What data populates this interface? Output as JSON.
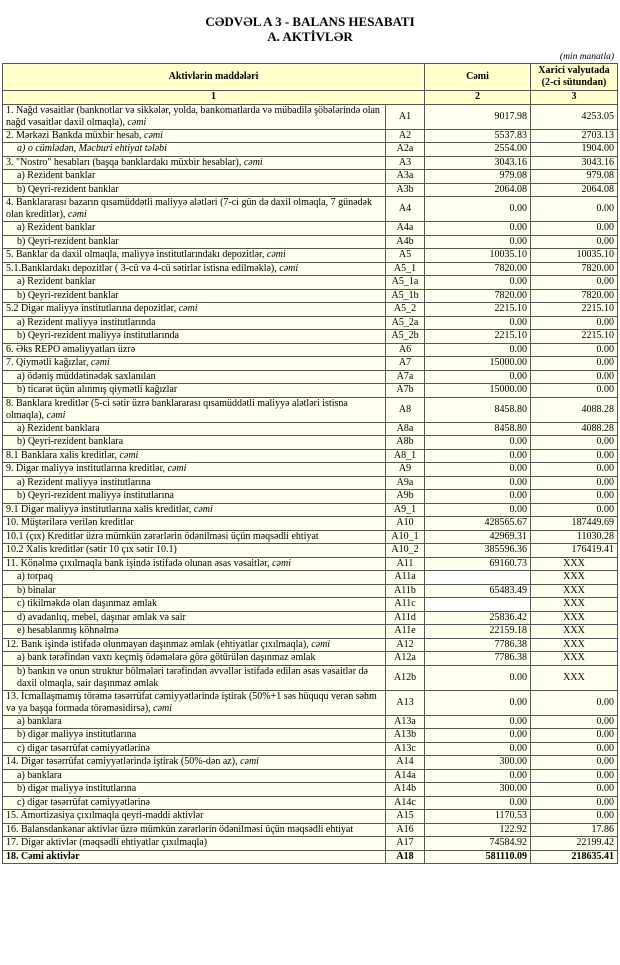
{
  "header": {
    "title": "CƏDVƏL A 3 - BALANS HESABATI",
    "subtitle": "A. AKTİVLƏR",
    "unit": "(min manatla)"
  },
  "table": {
    "columns": [
      "Aktivlərin   maddələri",
      "Cəmi",
      "Xarici valyutada (2-ci sütundan)"
    ],
    "column_numbers": [
      "1",
      "2",
      "3"
    ],
    "rows": [
      {
        "label": "1. Nağd vəsaitlər (banknotlar və sikkələr, yolda, bankomatlarda və mübadilə şöbələrində olan nağd vəsaitlər daxil olmaqla), ",
        "em": "cəmi",
        "code": "A1",
        "total": "9017.98",
        "fx": "4253.05"
      },
      {
        "label": "2. Mərkəzi Bankda müxbir hesab, ",
        "em": "cəmi",
        "code": "A2",
        "total": "5537.83",
        "fx": "2703.13"
      },
      {
        "em": "a) o cümlədən, Məcburi ehtiyat tələbi",
        "code": "A2a",
        "total": "2554.00",
        "fx": "1904.00"
      },
      {
        "label": "3. \"Nostro\" hesabları (başqa banklardakı müxbir hesablar), ",
        "em": "cəmi",
        "code": "A3",
        "total": "3043.16",
        "fx": "3043.16"
      },
      {
        "label": "a) Rezident banklar",
        "code": "A3a",
        "total": "979.08",
        "fx": "979.08"
      },
      {
        "label": "b) Qeyri-rezident banklar",
        "code": "A3b",
        "total": "2064.08",
        "fx": "2064.08"
      },
      {
        "label": "4. Banklararası bazarın qısamüddətli maliyyə alətləri (7-ci gün də daxil olmaqla, 7 günədək olan kreditlər), ",
        "em": "cəmi",
        "code": "A4",
        "total": "0.00",
        "fx": "0.00"
      },
      {
        "label": "a) Rezident banklar",
        "code": "A4a",
        "total": "0.00",
        "fx": "0.00"
      },
      {
        "label": "b) Qeyri-rezident banklar",
        "code": "A4b",
        "total": "0.00",
        "fx": "0.00"
      },
      {
        "label": "5. Banklar da daxil olmaqla, maliyyə institutlarındakı depozitlər, ",
        "em": "cəmi",
        "code": "A5",
        "total": "10035.10",
        "fx": "10035.10"
      },
      {
        "label": "5.1.Banklardakı depozitlər ( 3-cü və 4-cü sətirlər istisna edilməklə), ",
        "em": "cəmi",
        "code": "A5_1",
        "total": "7820.00",
        "fx": "7820.00"
      },
      {
        "label": "a) Rezident banklar",
        "code": "A5_1a",
        "total": "0.00",
        "fx": "0.00"
      },
      {
        "label": "b) Qeyri-rezident banklar",
        "code": "A5_1b",
        "total": "7820.00",
        "fx": "7820.00"
      },
      {
        "label": "5.2 Digər maliyyə institutlarına depozitlər, ",
        "em": "cəmi",
        "code": "A5_2",
        "total": "2215.10",
        "fx": "2215.10"
      },
      {
        "label": "a) Rezident maliyyə institutlarında",
        "code": "A5_2a",
        "total": "0.00",
        "fx": "0.00"
      },
      {
        "label": "b) Qeyri-rezident maliyyə institutlarında",
        "code": "A5_2b",
        "total": "2215.10",
        "fx": "2215.10"
      },
      {
        "label": "6. Əks REPO əməliyyatları üzrə",
        "code": "A6",
        "total": "0.00",
        "fx": "0.00"
      },
      {
        "label": "7. Qiymətli kağızlar, ",
        "em": "cəmi",
        "code": "A7",
        "total": "15000.00",
        "fx": "0.00"
      },
      {
        "label": "a) ödəniş müddətinədək saxlanılan",
        "code": "A7a",
        "total": "0.00",
        "fx": "0.00"
      },
      {
        "label": "b) ticarət üçün alınmış qiymətli kağızlar",
        "code": "A7b",
        "total": "15000.00",
        "fx": "0.00"
      },
      {
        "label": "8. Banklara kreditlər (5-ci sətir üzrə banklararası qısamüddətli maliyyə alətləri istisna olmaqla), ",
        "em": "cəmi",
        "code": "A8",
        "total": "8458.80",
        "fx": "4088.28"
      },
      {
        "label": "a) Rezident banklara",
        "code": "A8a",
        "total": "8458.80",
        "fx": "4088.28"
      },
      {
        "label": "b) Qeyri-rezident banklara",
        "code": "A8b",
        "total": "0.00",
        "fx": "0.00"
      },
      {
        "label": "8.1 Banklara xalis kreditlər, ",
        "em": "cəmi",
        "code": "A8_1",
        "total": "0.00",
        "fx": "0.00"
      },
      {
        "label": "9. Digər maliyyə institutlarına kreditlər, ",
        "em": "cəmi",
        "code": "A9",
        "total": "0.00",
        "fx": "0.00"
      },
      {
        "label": "a) Rezident maliyyə institutlarına",
        "code": "A9a",
        "total": "0.00",
        "fx": "0.00"
      },
      {
        "label": "b) Qeyri-rezident maliyyə institutlarına",
        "code": "A9b",
        "total": "0.00",
        "fx": "0.00"
      },
      {
        "label": "9.1 Digər maliyyə institutlarına xalis kreditlər, ",
        "em": "cəmi",
        "code": "A9_1",
        "total": "0.00",
        "fx": "0.00"
      },
      {
        "label": "10. Müştərilərə verilən kreditlər",
        "code": "A10",
        "total": "428565.67",
        "fx": "187449.69"
      },
      {
        "label": "10.1 (çıx) Kreditlər üzrə mümkün zərərlərin ödənilməsi üçün məqsədli ehtiyat",
        "code": "A10_1",
        "total": "42969.31",
        "fx": "11030.28"
      },
      {
        "label": "10.2 Xalis kreditlər (sətir 10 çıx sətir 10.1)",
        "code": "A10_2",
        "total": "385596.36",
        "fx": "176419.41"
      },
      {
        "label": "11. Könəlmə çıxılmaqla bank işində istifadə olunan əsas vəsaitlər, ",
        "em": "cəmi",
        "code": "A11",
        "total": "69160.73",
        "fx": "XXX"
      },
      {
        "label": "a) torpaq",
        "code": "A11a",
        "fx": "XXX"
      },
      {
        "label": "b) binalar",
        "code": "A11b",
        "total": "65483.49",
        "fx": "XXX"
      },
      {
        "label": "c) tikilməkdə olan daşınmaz əmlak",
        "code": "A11c",
        "fx": "XXX"
      },
      {
        "label": "d) avadanlıq, mebel, daşınar əmlak və sair",
        "code": "A11d",
        "total": "25836.42",
        "fx": "XXX"
      },
      {
        "label": "e) hesablanmış köhnəlmə",
        "code": "A11e",
        "total": "22159.18",
        "fx": "XXX"
      },
      {
        "label": "12. Bank işində istifadə olunmayan daşınmaz əmlak (ehtiyatlar çıxılmaqla), ",
        "em": "cəmi",
        "code": "A12",
        "total": "7786.38",
        "fx": "XXX"
      },
      {
        "label": "a) bank tərəfindən vaxtı keçmiş ödəmələrə görə götürülən daşınmaz əmlak",
        "code": "A12a",
        "total": "7786.38",
        "fx": "XXX"
      },
      {
        "label": "b) bankın və onun struktur bölmələri tərəfindən əvvəllər istifadə edilən əsas vəsaitlər də daxil olmaqla, sair daşınmaz əmlak",
        "code": "A12b",
        "total": "0.00",
        "fx": "XXX"
      },
      {
        "label": "13. İcmallaşmamış törəmə təsərrüfat cəmiyyətlərində iştirak (50%+1 səs hüququ verən səhm və ya başqa formada törəməsidirsə), ",
        "em": "cəmi",
        "code": "A13",
        "total": "0.00",
        "fx": "0.00"
      },
      {
        "label": "a) banklara",
        "code": "A13a",
        "total": "0.00",
        "fx": "0.00"
      },
      {
        "label": "b) digər maliyyə institutlarına",
        "code": "A13b",
        "total": "0.00",
        "fx": "0.00"
      },
      {
        "label": "c) digər təsərrüfat cəmiyyətlərinə",
        "code": "A13c",
        "total": "0.00",
        "fx": "0.00"
      },
      {
        "label": "14. Digər təsərrüfat cəmiyyətlərində iştirak (50%-dən az), ",
        "em": "cəmi",
        "code": "A14",
        "total": "300.00",
        "fx": "0.00"
      },
      {
        "label": "a) banklara",
        "code": "A14a",
        "total": "0.00",
        "fx": "0.00"
      },
      {
        "label": "b) digər maliyyə institutlarına",
        "code": "A14b",
        "total": "300.00",
        "fx": "0.00"
      },
      {
        "label": "c) digər təsərrüfat cəmiyyətlərinə",
        "code": "A14c",
        "total": "0.00",
        "fx": "0.00"
      },
      {
        "label": "15. Amortizasiya çıxılmaqla qeyri-maddi aktivlər",
        "code": "A15",
        "total": "1170.53",
        "fx": "0.00"
      },
      {
        "label": "16. Balansdankənar aktivlər üzrə mümkün zərərlərin ödənilməsi üçün məqsədli ehtiyat",
        "code": "A16",
        "total": "122.92",
        "fx": "17.86"
      },
      {
        "label": "17. Digər aktivlər (məqsədli ehtiyatlar çıxılmaqla)",
        "code": "A17",
        "total": "74584.92",
        "fx": "22199.42"
      },
      {
        "label": "18. Cəmi aktivlər",
        "code": "A18",
        "total": "581110.09",
        "fx": "218635.41"
      }
    ]
  }
}
